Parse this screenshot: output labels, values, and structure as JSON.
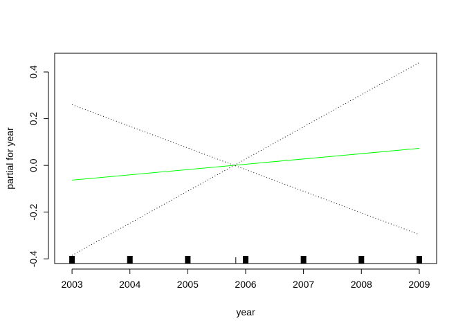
{
  "chart_data": {
    "type": "line",
    "title": "",
    "xlabel": "year",
    "ylabel": "partial for year",
    "xlim": [
      2002.7,
      2009.3
    ],
    "ylim": [
      -0.42,
      0.48
    ],
    "xticks": [
      2003,
      2004,
      2005,
      2006,
      2007,
      2008,
      2009
    ],
    "xtick_labels": [
      "2003",
      "2004",
      "2005",
      "2006",
      "2007",
      "2008",
      "2009"
    ],
    "yticks": [
      -0.4,
      -0.2,
      0.0,
      0.2,
      0.4
    ],
    "ytick_labels": [
      "-0.4",
      "-0.2",
      "0.0",
      "0.2",
      "0.4"
    ],
    "grid": false,
    "legend": "none",
    "series": [
      {
        "style": "solid",
        "color": "#00ff00",
        "x": [
          2003,
          2009
        ],
        "y": [
          -0.063,
          0.073
        ]
      },
      {
        "style": "dotted",
        "color": "#000000",
        "x": [
          2003,
          2009
        ],
        "y": [
          -0.385,
          0.44
        ]
      },
      {
        "style": "dotted",
        "color": "#000000",
        "x": [
          2003,
          2009
        ],
        "y": [
          0.26,
          -0.296
        ]
      }
    ],
    "rug": {
      "x": [
        2003,
        2004,
        2005,
        2006,
        2007,
        2008,
        2009
      ],
      "mean_tick": 2005.83,
      "color": "#000000"
    }
  }
}
